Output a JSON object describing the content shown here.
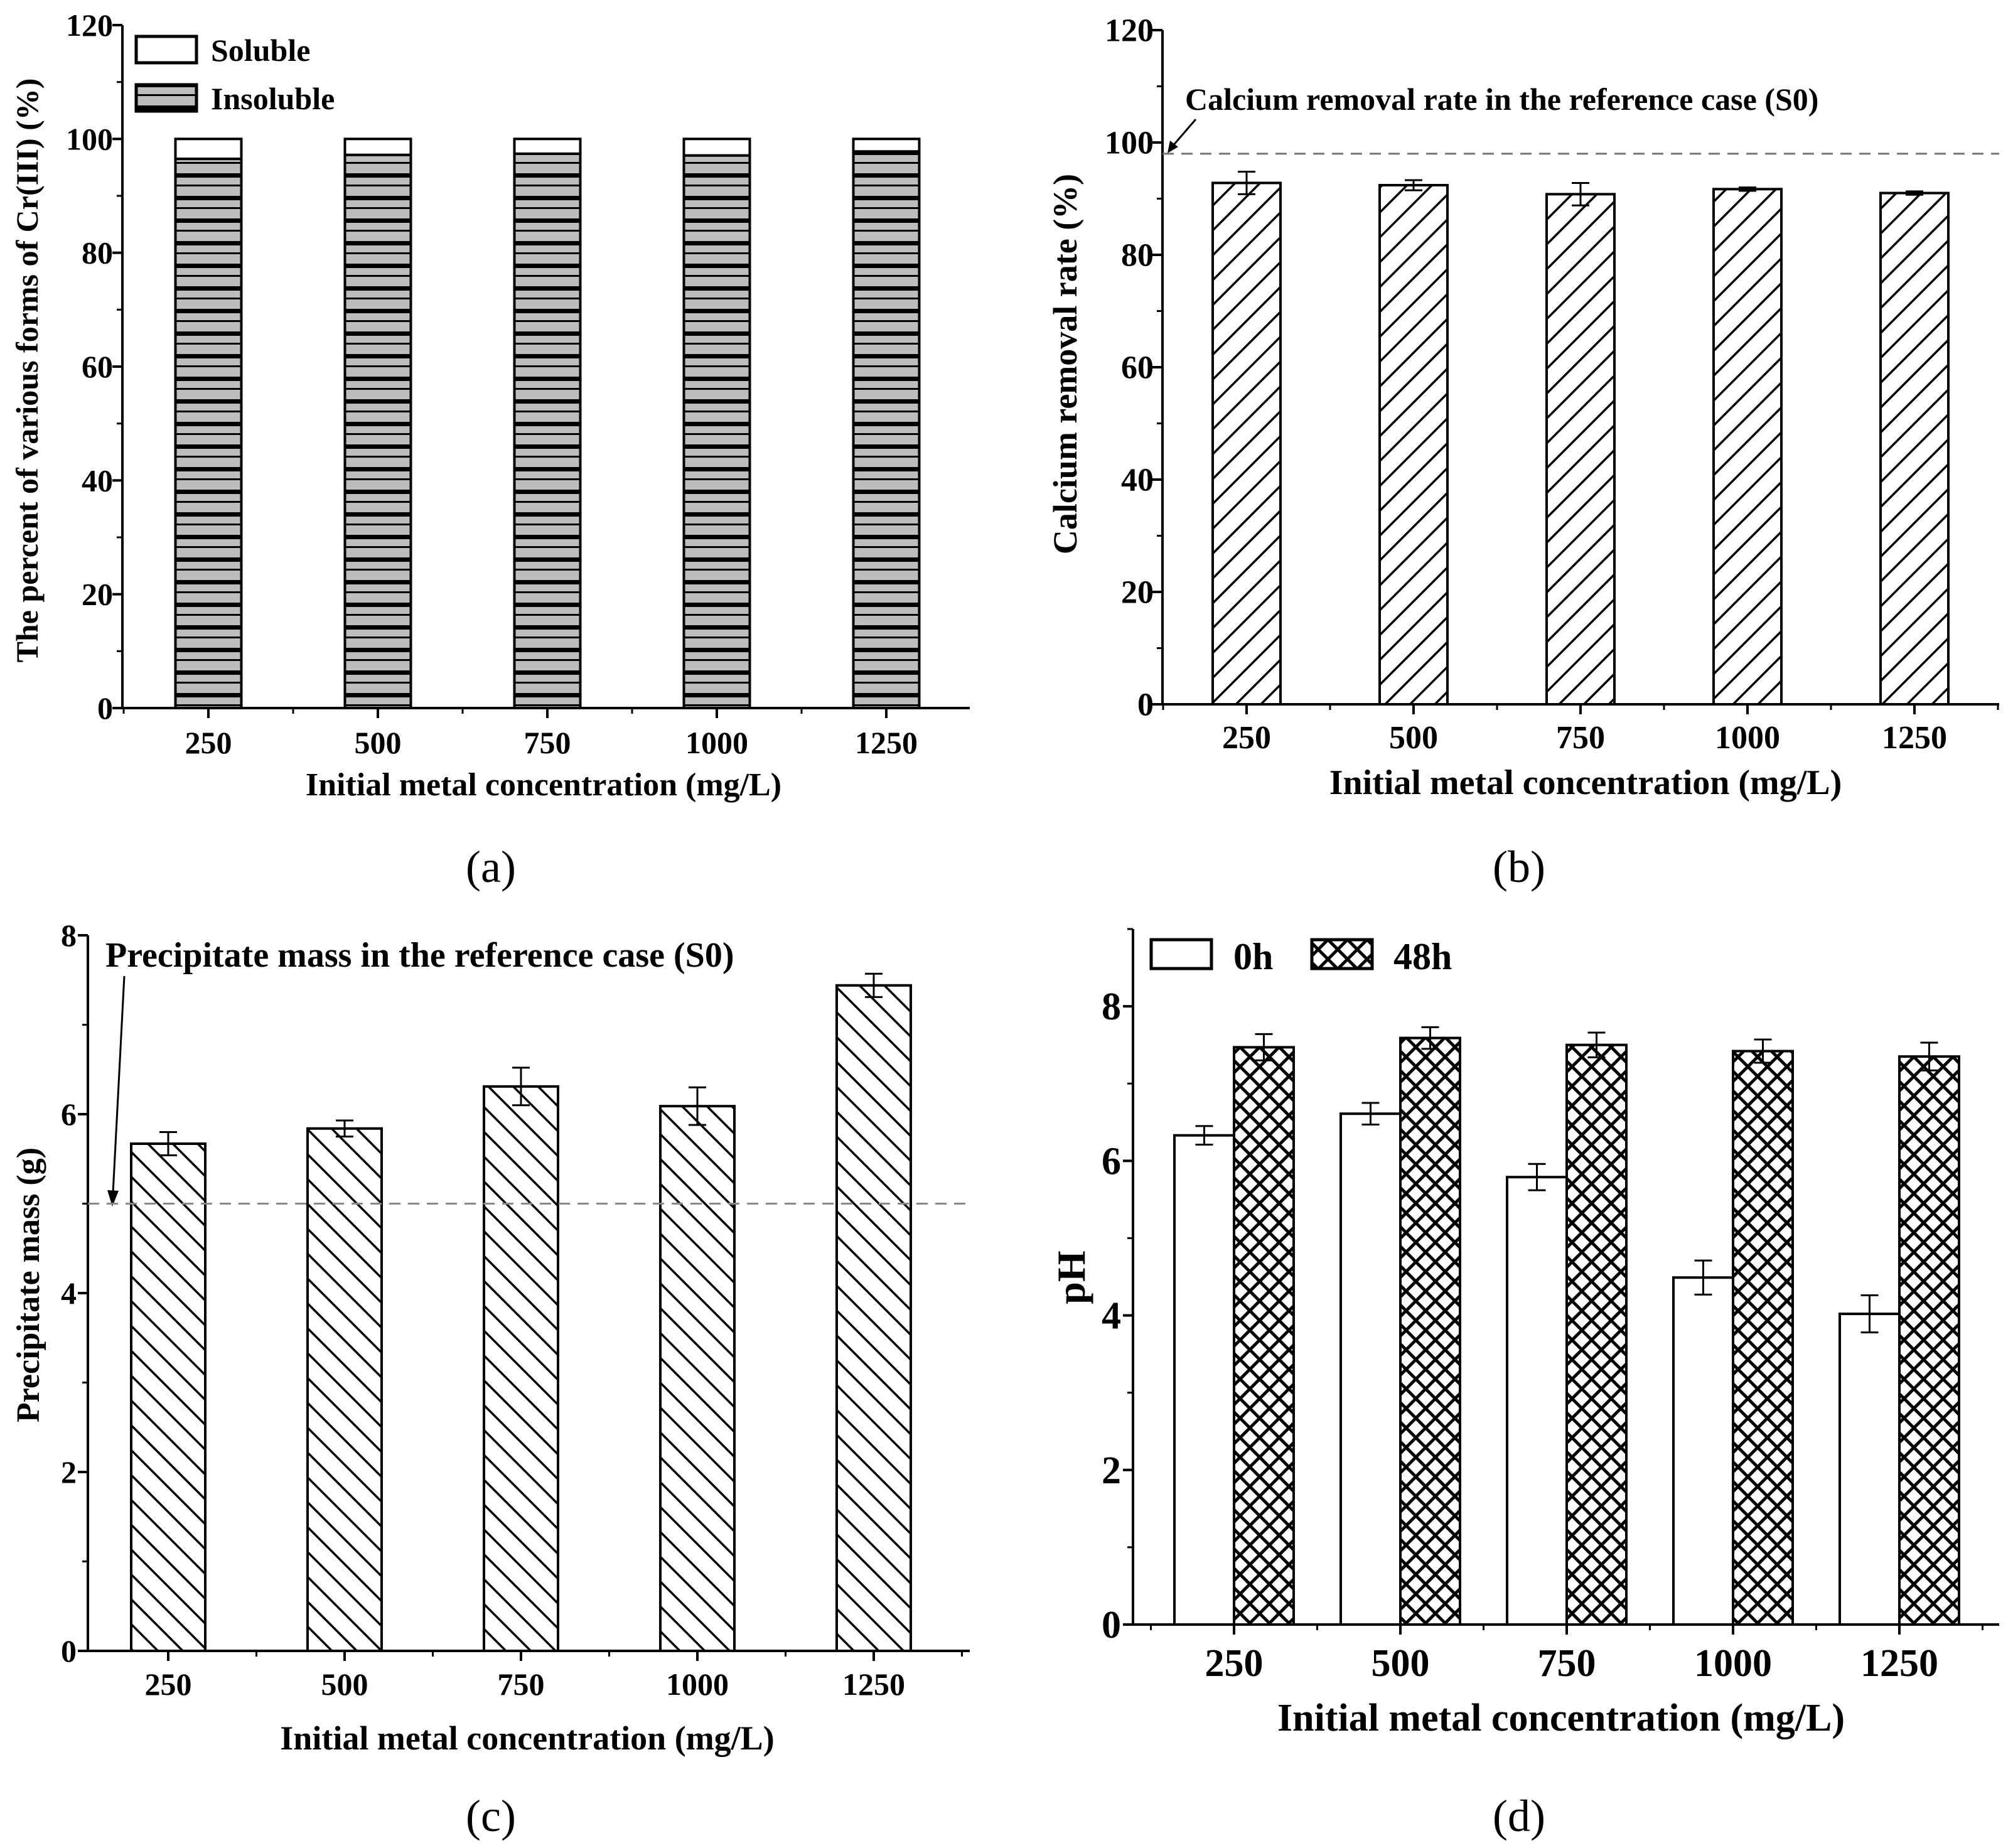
{
  "chart_data": [
    {
      "panel": "(a)",
      "type": "bar",
      "stacked": true,
      "categories": [
        "250",
        "500",
        "750",
        "1000",
        "1250"
      ],
      "series": [
        {
          "name": "Insoluble",
          "values": [
            96.5,
            97.2,
            97.4,
            97.1,
            97.8
          ]
        },
        {
          "name": "Soluble",
          "values": [
            3.5,
            2.8,
            2.6,
            2.9,
            2.2
          ]
        }
      ],
      "xlabel": "Initial metal concentration (mg/L)",
      "ylabel": "The percent of various forms of Cr(III) (%)",
      "ylim": [
        0,
        120
      ],
      "yticks": [
        0,
        20,
        40,
        60,
        80,
        100,
        120
      ],
      "legend_position": "top-left"
    },
    {
      "panel": "(b)",
      "type": "bar",
      "categories": [
        "250",
        "500",
        "750",
        "1000",
        "1250"
      ],
      "values": [
        92.8,
        92.4,
        90.8,
        91.7,
        91.0
      ],
      "errors": [
        2.0,
        0.9,
        2.0,
        0.3,
        0.3
      ],
      "reference_line": {
        "value": 98,
        "label": "Calcium removal rate in the reference case (S0)"
      },
      "xlabel": "Initial metal concentration (mg/L)",
      "ylabel": "Calcium removal rate (%)",
      "ylim": [
        0,
        120
      ],
      "yticks": [
        0,
        20,
        40,
        60,
        80,
        100,
        120
      ]
    },
    {
      "panel": "(c)",
      "type": "bar",
      "categories": [
        "250",
        "500",
        "750",
        "1000",
        "1250"
      ],
      "values": [
        5.67,
        5.84,
        6.31,
        6.09,
        7.44
      ],
      "errors": [
        0.13,
        0.09,
        0.21,
        0.21,
        0.13
      ],
      "reference_line": {
        "value": 5.0,
        "label": "Precipitate mass in the reference case (S0)"
      },
      "xlabel": "Initial metal concentration (mg/L)",
      "ylabel": "Precipitate mass  (g)",
      "ylim": [
        0,
        8
      ],
      "yticks": [
        0,
        2,
        4,
        6,
        8
      ]
    },
    {
      "panel": "(d)",
      "type": "bar",
      "categories": [
        "250",
        "500",
        "750",
        "1000",
        "1250"
      ],
      "series": [
        {
          "name": "0h",
          "values": [
            6.33,
            6.61,
            5.79,
            4.49,
            4.02
          ],
          "errors": [
            0.12,
            0.14,
            0.17,
            0.22,
            0.24
          ]
        },
        {
          "name": "48h",
          "values": [
            7.47,
            7.59,
            7.5,
            7.42,
            7.35
          ],
          "errors": [
            0.17,
            0.14,
            0.16,
            0.15,
            0.18
          ]
        }
      ],
      "xlabel": "Initial metal concentration (mg/L)",
      "ylabel": "pH",
      "ylim": [
        0,
        9
      ],
      "yticks": [
        0,
        2,
        4,
        6,
        8
      ],
      "legend_position": "top-left"
    }
  ]
}
